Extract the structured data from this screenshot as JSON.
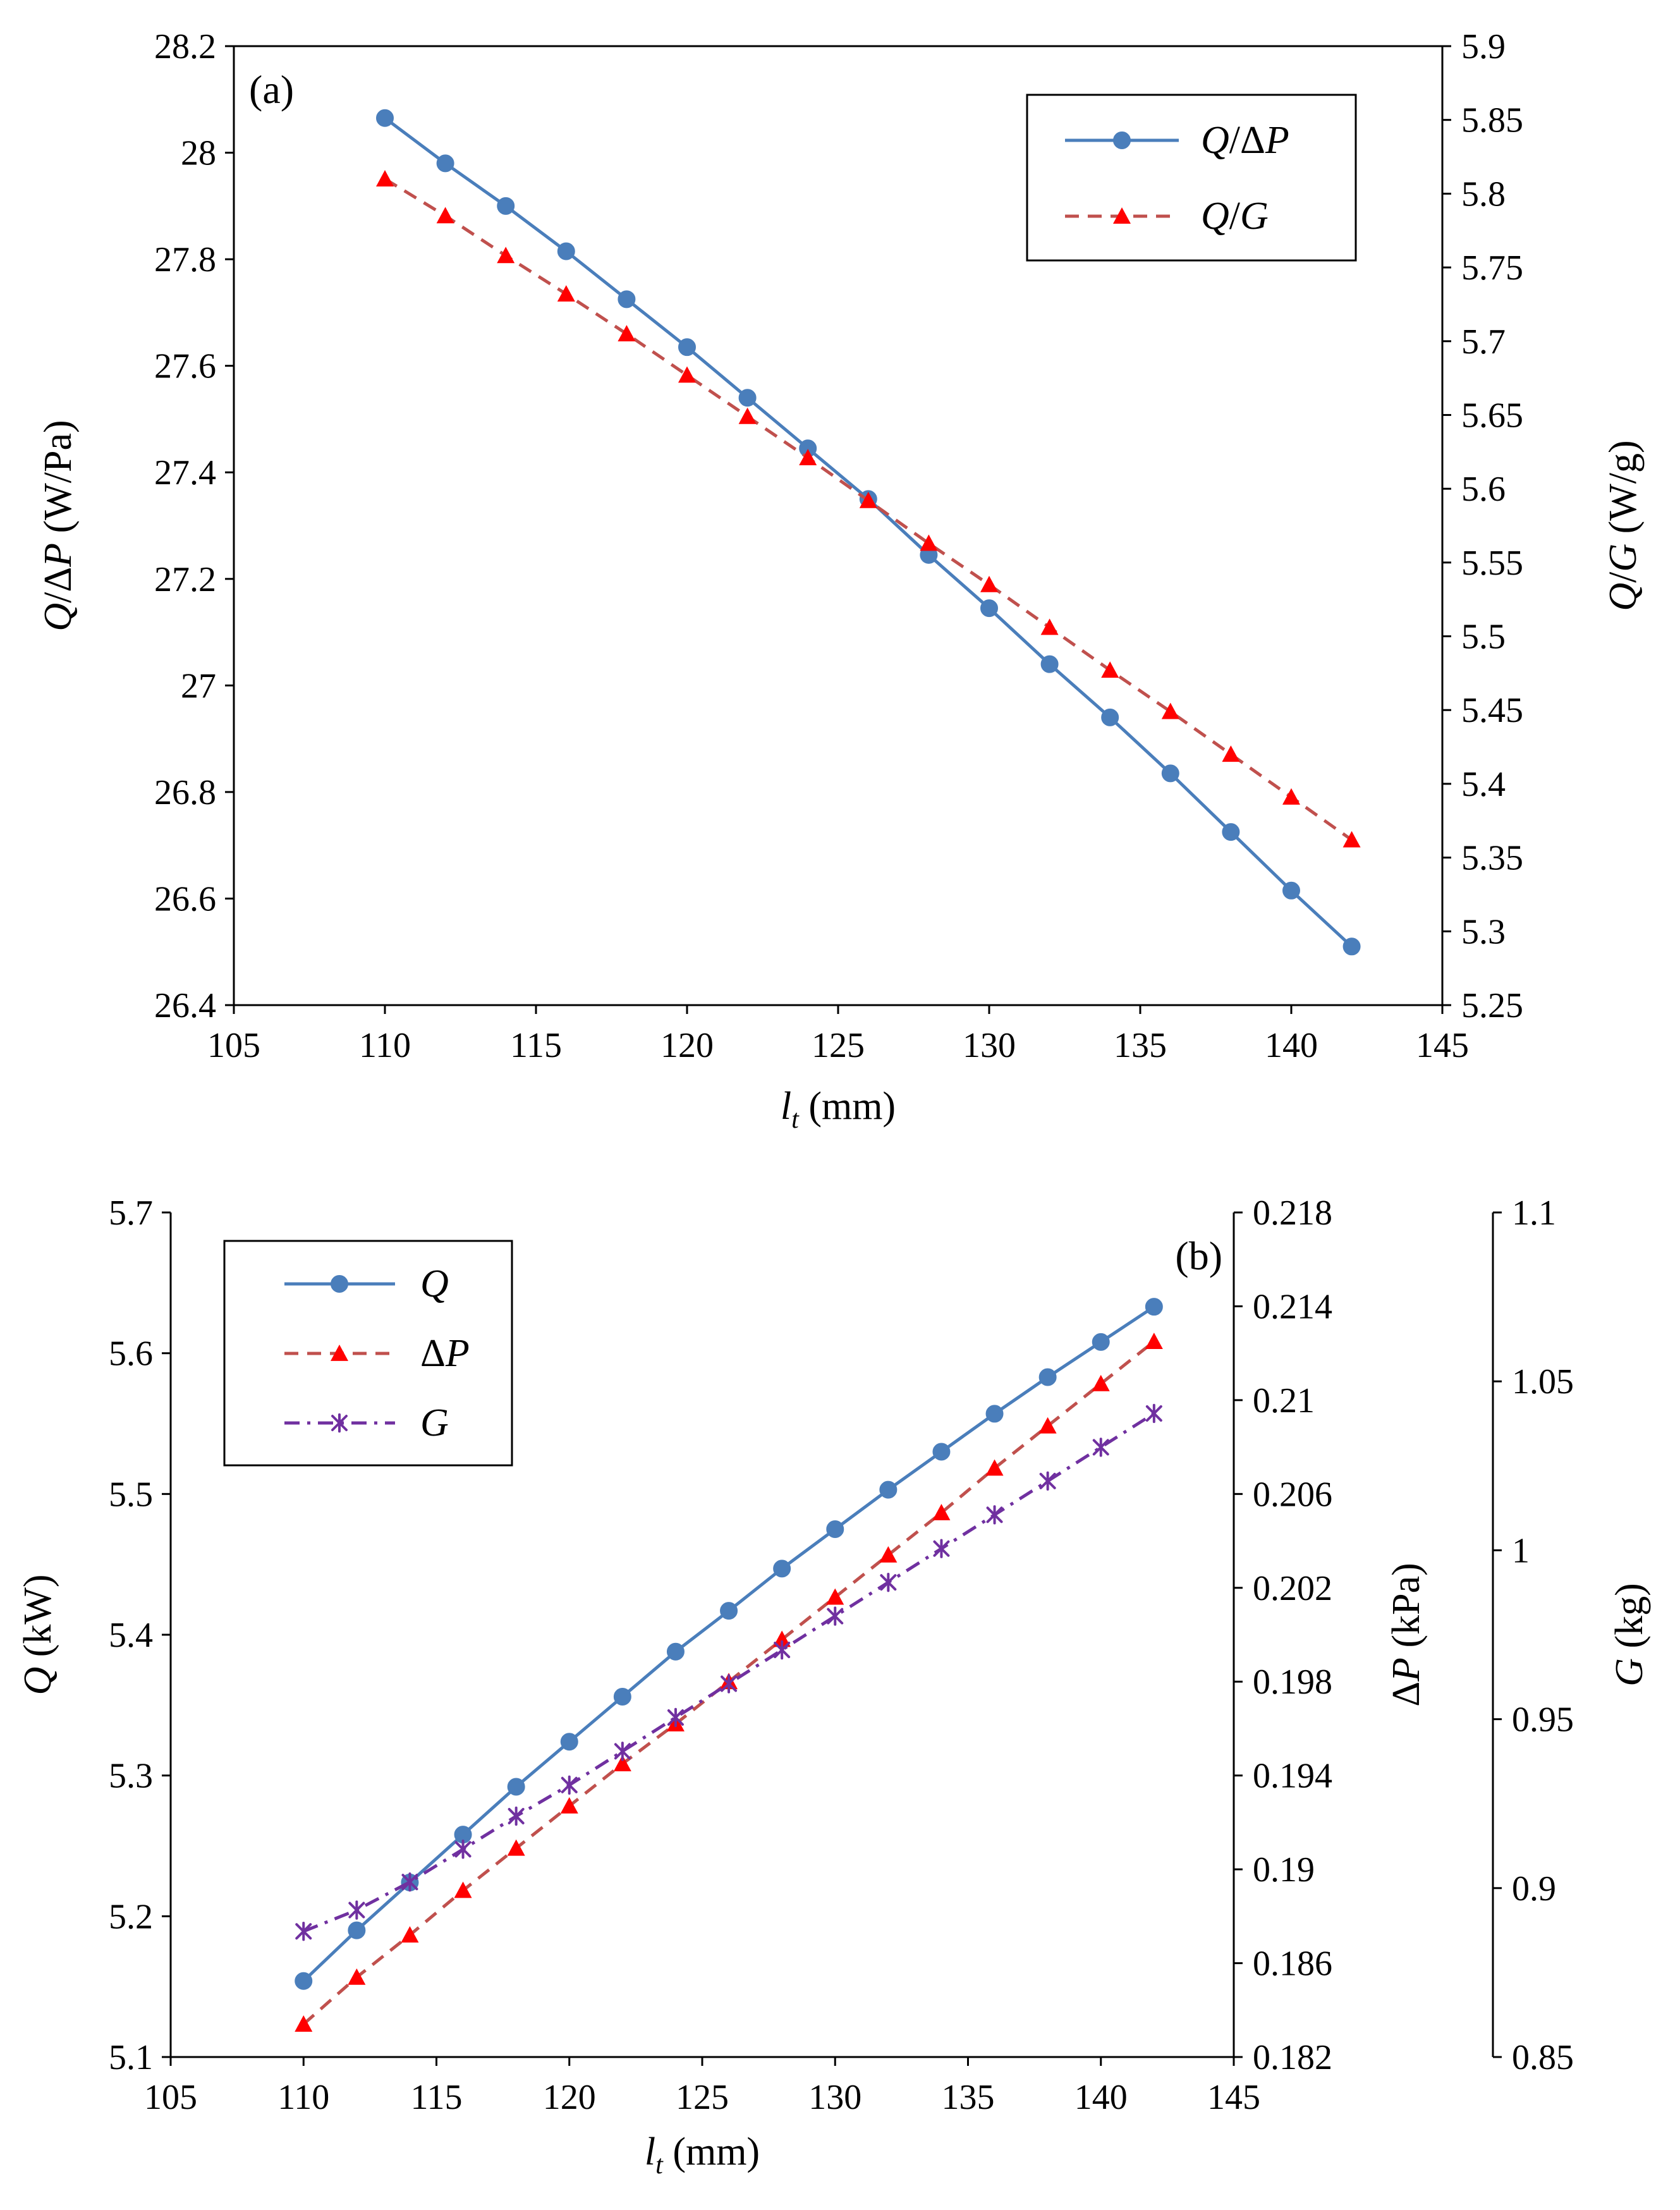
{
  "chart_data": [
    {
      "type": "line",
      "panel_label": "(a)",
      "x": [
        110,
        112,
        114,
        116,
        118,
        120,
        122,
        124,
        126,
        128,
        130,
        132,
        134,
        136,
        138,
        140,
        142
      ],
      "xlim": [
        105,
        145
      ],
      "xticks": [
        "105",
        "110",
        "115",
        "120",
        "125",
        "130",
        "135",
        "140",
        "145"
      ],
      "xlabel": {
        "symbol": "l",
        "subscript": "t",
        "unit": " (mm)"
      },
      "ylim_left": [
        26.4,
        28.2
      ],
      "yticks_left": [
        "26.4",
        "26.6",
        "26.8",
        "27",
        "27.2",
        "27.4",
        "27.6",
        "27.8",
        "28",
        "28.2"
      ],
      "ylabel_left": {
        "italic": "Q",
        "normal": "/Δ",
        "italic2": "P",
        "unit": " (W/Pa)"
      },
      "ylim_right": [
        5.25,
        5.9
      ],
      "yticks_right": [
        "5.25",
        "5.3",
        "5.35",
        "5.4",
        "5.45",
        "5.5",
        "5.55",
        "5.6",
        "5.65",
        "5.7",
        "5.75",
        "5.8",
        "5.85",
        "5.9"
      ],
      "ylabel_right": {
        "italic": "Q",
        "normal": "/",
        "italic2": "G",
        "unit": " (W/g)"
      },
      "legend_position": "top-right",
      "series": [
        {
          "name": "Q/ΔP",
          "legend": {
            "italic": "Q",
            "normal": "/Δ",
            "italic2": "P"
          },
          "axis": "left",
          "color": "#4a7ebb",
          "marker": "circle",
          "line": "solid",
          "values": [
            28.065,
            27.98,
            27.9,
            27.815,
            27.725,
            27.635,
            27.54,
            27.445,
            27.35,
            27.245,
            27.145,
            27.04,
            26.94,
            26.835,
            26.725,
            26.615,
            26.51
          ]
        },
        {
          "name": "Q/G",
          "legend": {
            "italic": "Q",
            "normal": "/",
            "italic2": "G"
          },
          "axis": "right",
          "color": "#c0504d",
          "marker_color": "#ff0000",
          "marker": "triangle",
          "line": "dashed",
          "values": [
            5.81,
            5.785,
            5.758,
            5.732,
            5.705,
            5.677,
            5.649,
            5.621,
            5.592,
            5.563,
            5.535,
            5.506,
            5.477,
            5.449,
            5.42,
            5.391,
            5.362
          ]
        }
      ]
    },
    {
      "type": "line",
      "panel_label": "(b)",
      "x": [
        110,
        112,
        114,
        116,
        118,
        120,
        122,
        124,
        126,
        128,
        130,
        132,
        134,
        136,
        138,
        140,
        142
      ],
      "xlim": [
        105,
        145
      ],
      "xticks": [
        "105",
        "110",
        "115",
        "120",
        "125",
        "130",
        "135",
        "140",
        "145"
      ],
      "xlabel": {
        "symbol": "l",
        "subscript": "t",
        "unit": " (mm)"
      },
      "ylim_left": [
        5.1,
        5.7
      ],
      "yticks_left": [
        "5.1",
        "5.2",
        "5.3",
        "5.4",
        "5.5",
        "5.6",
        "5.7"
      ],
      "ylabel_left": {
        "italic": "Q",
        "normal": "",
        "italic2": "",
        "unit": " (kW)"
      },
      "ylim_right": [
        0.182,
        0.218
      ],
      "yticks_right": [
        "0.182",
        "0.186",
        "0.19",
        "0.194",
        "0.198",
        "0.202",
        "0.206",
        "0.21",
        "0.214",
        "0.218"
      ],
      "ylabel_right": {
        "italic": "",
        "normal": "Δ",
        "italic2": "P",
        "unit": " (kPa)"
      },
      "ylim_right2": [
        0.85,
        1.1
      ],
      "yticks_right2": [
        "0.85",
        "0.9",
        "0.95",
        "1",
        "1.05",
        "1.1"
      ],
      "ylabel_right2": {
        "italic": "G",
        "normal": "",
        "italic2": "",
        "unit": " (kg)"
      },
      "legend_position": "top-left",
      "series": [
        {
          "name": "Q",
          "legend": {
            "italic": "Q",
            "normal": "",
            "italic2": ""
          },
          "axis": "left",
          "color": "#4a7ebb",
          "marker": "circle",
          "line": "solid",
          "values": [
            5.154,
            5.19,
            5.224,
            5.258,
            5.292,
            5.324,
            5.356,
            5.388,
            5.417,
            5.447,
            5.475,
            5.503,
            5.53,
            5.557,
            5.583,
            5.608,
            5.633
          ]
        },
        {
          "name": "ΔP",
          "legend": {
            "italic": "",
            "normal": "Δ",
            "italic2": "P"
          },
          "axis": "right",
          "color": "#c0504d",
          "marker_color": "#ff0000",
          "marker": "triangle",
          "line": "dashed",
          "values": [
            0.1834,
            0.1854,
            0.1872,
            0.1891,
            0.1909,
            0.1927,
            0.1945,
            0.1962,
            0.198,
            0.1998,
            0.2016,
            0.2034,
            0.2052,
            0.2071,
            0.2089,
            0.2107,
            0.2125
          ]
        },
        {
          "name": "G",
          "legend": {
            "italic": "G",
            "normal": "",
            "italic2": ""
          },
          "axis": "right2",
          "color": "#7030a0",
          "marker": "star",
          "line": "dashdot",
          "values": [
            0.8872,
            0.8935,
            0.9018,
            0.9115,
            0.9213,
            0.9305,
            0.9405,
            0.9505,
            0.9605,
            0.9705,
            0.9805,
            0.9905,
            1.0005,
            1.0105,
            1.0205,
            1.0305,
            1.0405
          ]
        }
      ]
    }
  ]
}
